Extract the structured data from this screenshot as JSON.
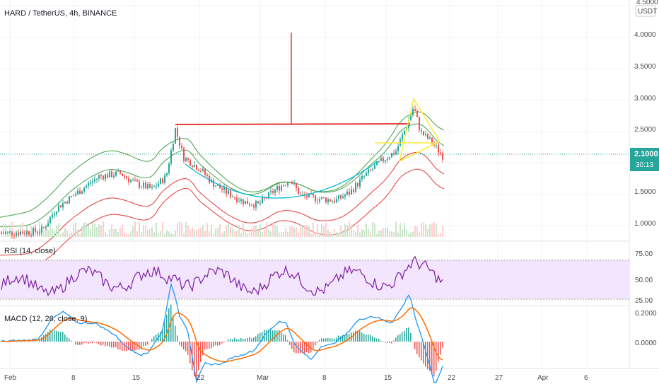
{
  "main": {
    "title": "HARD / TetherUS, 4h, BINANCE",
    "currency_badge": "USDT",
    "price_ticks": [
      "4.5000",
      "4.0000",
      "3.5000",
      "3.0000",
      "2.5000",
      "2.1000",
      "1.5000",
      "1.0000"
    ],
    "price_tick_values": [
      4.5,
      4.0,
      3.5,
      3.0,
      2.5,
      2.1,
      1.5,
      1.0
    ],
    "last_price": "2.1000",
    "countdown": "30:13"
  },
  "rsi": {
    "label": "RSI (14, close)",
    "ticks": [
      "75.00",
      "50.00",
      "25.00"
    ]
  },
  "macd": {
    "label": "MACD (12, 26, close, 9)",
    "ticks": [
      "0.2000",
      "0.0000"
    ]
  },
  "time_axis": {
    "labels": [
      "Feb",
      "8",
      "15",
      "22",
      "Mar",
      "8",
      "15",
      "22",
      "27",
      "Apr",
      "6"
    ]
  },
  "colors": {
    "bull": "#26a69a",
    "bear": "#ef5350",
    "rsi_line": "#7b1fa2",
    "rsi_band": "#f3e5fd",
    "macd_line": "#2196f3",
    "signal_line": "#ff6d00",
    "cup_curve": "#00bcd4",
    "drawing_red": "#e53935",
    "triangle_yellow": "#ffeb3b",
    "price_label_bg": "#26a69a"
  }
}
